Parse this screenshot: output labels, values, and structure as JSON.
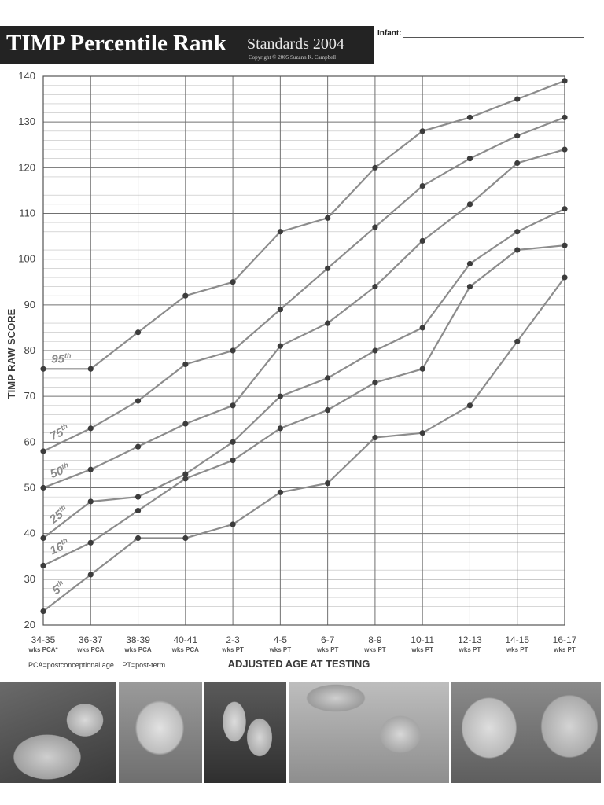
{
  "header": {
    "title_main": "TIMP Percentile Rank",
    "title_sub": "Standards 2004",
    "copyright": "Copyright © 2005 Suzann K. Campbell"
  },
  "infant": {
    "label": "Infant:",
    "value": ""
  },
  "footnote": {
    "pca": "PCA=postconceptional age",
    "pt": "PT=post-term"
  },
  "chart_data": {
    "type": "line",
    "ylabel": "TIMP RAW SCORE",
    "xlabel": "ADJUSTED AGE AT TESTING",
    "ylim": [
      20,
      140
    ],
    "yticks": [
      20,
      30,
      40,
      50,
      60,
      70,
      80,
      90,
      100,
      110,
      120,
      130,
      140
    ],
    "grid": true,
    "categories": [
      "34-35",
      "36-37",
      "38-39",
      "40-41",
      "2-3",
      "4-5",
      "6-7",
      "8-9",
      "10-11",
      "12-13",
      "14-15",
      "16-17"
    ],
    "category_sublabels": [
      "wks PCA*",
      "wks PCA",
      "wks PCA",
      "wks PCA",
      "wks PT",
      "wks PT",
      "wks PT",
      "wks PT",
      "wks PT",
      "wks PT",
      "wks PT",
      "wks PT"
    ],
    "series": [
      {
        "name": "95th",
        "values": [
          76,
          76,
          84,
          92,
          95,
          106,
          109,
          120,
          128,
          131,
          135,
          139
        ]
      },
      {
        "name": "75th",
        "values": [
          58,
          63,
          69,
          77,
          80,
          89,
          98,
          107,
          116,
          122,
          127,
          131
        ]
      },
      {
        "name": "50th",
        "values": [
          50,
          54,
          59,
          64,
          68,
          81,
          86,
          94,
          104,
          112,
          121,
          124
        ]
      },
      {
        "name": "25th",
        "values": [
          39,
          47,
          48,
          53,
          60,
          70,
          74,
          80,
          85,
          99,
          106,
          111
        ]
      },
      {
        "name": "16th",
        "values": [
          33,
          38,
          45,
          52,
          56,
          63,
          67,
          73,
          76,
          94,
          102,
          103
        ]
      },
      {
        "name": "5th",
        "values": [
          23,
          31,
          39,
          39,
          42,
          49,
          51,
          61,
          62,
          68,
          82,
          96
        ]
      }
    ]
  }
}
